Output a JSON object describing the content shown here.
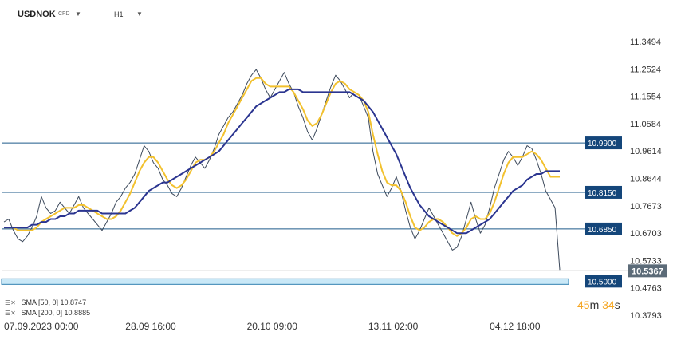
{
  "header": {
    "symbol": "USDNOK",
    "instrument_type": "CFD",
    "timeframe": "H1"
  },
  "legend": [
    {
      "icon": "settings-icon",
      "text": "SMA [50, 0] 10.8747",
      "color": "#f2c12e"
    },
    {
      "icon": "settings-icon",
      "text": "SMA [200, 0] 10.8885",
      "color": "#2b3590"
    }
  ],
  "countdown": {
    "minutes": "45",
    "m": "m",
    "seconds": "34",
    "s": "s"
  },
  "chart_data": {
    "type": "line",
    "title": "",
    "xlabel": "",
    "ylabel": "",
    "ylim": [
      10.3793,
      11.3494
    ],
    "y_ticks": [
      "11.3494",
      "11.2524",
      "11.1554",
      "11.0584",
      "10.9614",
      "10.8644",
      "10.7673",
      "10.6703",
      "10.5733",
      "10.4763",
      "10.3793"
    ],
    "x_ticks": [
      "07.09.2023 00:00",
      "28.09 16:00",
      "20.10 09:00",
      "13.11 02:00",
      "04.12 18:00"
    ],
    "x_tick_index": [
      0,
      26,
      52,
      78,
      104
    ],
    "current_price": "10.5367",
    "levels": [
      {
        "label": "10.9900",
        "value": 10.99
      },
      {
        "label": "10.8150",
        "value": 10.815
      },
      {
        "label": "10.6850",
        "value": 10.685
      },
      {
        "label": "10.5000",
        "value": 10.5
      }
    ],
    "series": [
      {
        "name": "USDNOK",
        "color": "#3d4a5c",
        "values": [
          10.71,
          10.72,
          10.68,
          10.65,
          10.64,
          10.66,
          10.69,
          10.73,
          10.8,
          10.76,
          10.74,
          10.75,
          10.78,
          10.76,
          10.74,
          10.77,
          10.8,
          10.76,
          10.74,
          10.72,
          10.7,
          10.68,
          10.71,
          10.74,
          10.78,
          10.8,
          10.83,
          10.85,
          10.88,
          10.93,
          10.98,
          10.96,
          10.92,
          10.9,
          10.86,
          10.84,
          10.81,
          10.8,
          10.83,
          10.87,
          10.91,
          10.94,
          10.92,
          10.9,
          10.93,
          10.97,
          11.02,
          11.05,
          11.08,
          11.1,
          11.13,
          11.16,
          11.2,
          11.23,
          11.25,
          11.22,
          11.18,
          11.15,
          11.18,
          11.21,
          11.24,
          11.2,
          11.17,
          11.12,
          11.08,
          11.03,
          11.0,
          11.04,
          11.09,
          11.14,
          11.19,
          11.23,
          11.21,
          11.18,
          11.15,
          11.17,
          11.16,
          11.12,
          11.08,
          10.96,
          10.88,
          10.84,
          10.8,
          10.83,
          10.87,
          10.82,
          10.75,
          10.69,
          10.65,
          10.68,
          10.72,
          10.76,
          10.73,
          10.7,
          10.67,
          10.64,
          10.61,
          10.62,
          10.66,
          10.72,
          10.78,
          10.72,
          10.67,
          10.7,
          10.76,
          10.83,
          10.88,
          10.93,
          10.96,
          10.94,
          10.91,
          10.94,
          10.98,
          10.97,
          10.93,
          10.88,
          10.82,
          10.79,
          10.76,
          10.54
        ]
      },
      {
        "name": "SMA [50, 0]",
        "color": "#f2c12e",
        "values": [
          10.69,
          10.69,
          10.69,
          10.68,
          10.68,
          10.68,
          10.68,
          10.69,
          10.71,
          10.72,
          10.73,
          10.74,
          10.75,
          10.76,
          10.76,
          10.76,
          10.77,
          10.77,
          10.76,
          10.75,
          10.74,
          10.73,
          10.72,
          10.72,
          10.73,
          10.75,
          10.78,
          10.81,
          10.85,
          10.89,
          10.92,
          10.94,
          10.94,
          10.92,
          10.89,
          10.86,
          10.84,
          10.83,
          10.84,
          10.86,
          10.89,
          10.92,
          10.93,
          10.93,
          10.94,
          10.96,
          10.99,
          11.02,
          11.06,
          11.09,
          11.12,
          11.15,
          11.18,
          11.21,
          11.22,
          11.22,
          11.2,
          11.19,
          11.19,
          11.19,
          11.19,
          11.19,
          11.17,
          11.14,
          11.11,
          11.07,
          11.05,
          11.06,
          11.09,
          11.13,
          11.17,
          11.2,
          11.21,
          11.2,
          11.18,
          11.17,
          11.16,
          11.14,
          11.1,
          11.02,
          10.95,
          10.89,
          10.85,
          10.84,
          10.84,
          10.82,
          10.78,
          10.73,
          10.69,
          10.68,
          10.69,
          10.71,
          10.72,
          10.72,
          10.71,
          10.69,
          10.67,
          10.66,
          10.67,
          10.69,
          10.72,
          10.73,
          10.72,
          10.72,
          10.74,
          10.78,
          10.83,
          10.88,
          10.92,
          10.94,
          10.94,
          10.94,
          10.95,
          10.96,
          10.95,
          10.93,
          10.9,
          10.87,
          10.87,
          10.87
        ]
      },
      {
        "name": "SMA [200, 0]",
        "color": "#2b3590",
        "values": [
          10.69,
          10.69,
          10.69,
          10.69,
          10.69,
          10.69,
          10.7,
          10.7,
          10.71,
          10.71,
          10.72,
          10.72,
          10.73,
          10.73,
          10.74,
          10.74,
          10.75,
          10.75,
          10.75,
          10.75,
          10.75,
          10.74,
          10.74,
          10.74,
          10.74,
          10.74,
          10.74,
          10.75,
          10.76,
          10.78,
          10.8,
          10.82,
          10.83,
          10.84,
          10.85,
          10.85,
          10.86,
          10.87,
          10.88,
          10.89,
          10.9,
          10.91,
          10.92,
          10.93,
          10.94,
          10.95,
          10.96,
          10.98,
          11.0,
          11.02,
          11.04,
          11.06,
          11.08,
          11.1,
          11.12,
          11.13,
          11.14,
          11.15,
          11.16,
          11.17,
          11.17,
          11.18,
          11.18,
          11.18,
          11.17,
          11.17,
          11.17,
          11.17,
          11.17,
          11.17,
          11.17,
          11.17,
          11.17,
          11.17,
          11.17,
          11.16,
          11.15,
          11.14,
          11.12,
          11.1,
          11.07,
          11.04,
          11.01,
          10.98,
          10.95,
          10.91,
          10.87,
          10.83,
          10.8,
          10.77,
          10.75,
          10.73,
          10.72,
          10.71,
          10.7,
          10.69,
          10.68,
          10.67,
          10.67,
          10.67,
          10.68,
          10.69,
          10.7,
          10.71,
          10.72,
          10.74,
          10.76,
          10.78,
          10.8,
          10.82,
          10.83,
          10.84,
          10.86,
          10.87,
          10.88,
          10.88,
          10.89,
          10.89,
          10.89,
          10.89
        ]
      }
    ]
  }
}
